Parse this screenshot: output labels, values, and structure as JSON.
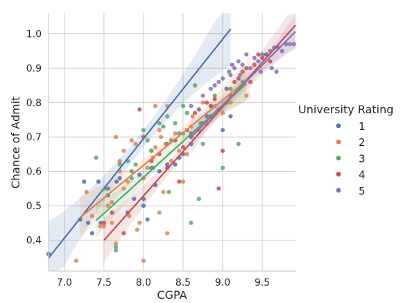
{
  "chart_data": {
    "type": "scatter",
    "title": "",
    "xlabel": "CGPA",
    "ylabel": "Chance of Admit",
    "xlim": [
      6.8,
      9.92
    ],
    "ylim": [
      0.31,
      1.06
    ],
    "xticks": [
      7.0,
      7.5,
      8.0,
      8.5,
      9.0,
      9.5
    ],
    "xtick_labels": [
      "7.0",
      "7.5",
      "8.0",
      "8.5",
      "9.0",
      "9.5"
    ],
    "yticks": [
      0.4,
      0.5,
      0.6,
      0.7,
      0.8,
      0.9,
      1.0
    ],
    "ytick_labels": [
      "0.4",
      "0.5",
      "0.6",
      "0.7",
      "0.8",
      "0.9",
      "1.0"
    ],
    "grid": true,
    "legend_position": "right",
    "legend": {
      "title": "University Rating",
      "entries": [
        "1",
        "2",
        "3",
        "4",
        "5"
      ]
    },
    "series": [
      {
        "name": "1",
        "color": "#4c72b0",
        "fit": {
          "intercept": -1.62,
          "slope": 0.2894,
          "x_range": [
            6.8,
            9.1
          ],
          "ci": 0.025
        },
        "points": [
          [
            6.8,
            0.36
          ],
          [
            7.2,
            0.46
          ],
          [
            7.25,
            0.57
          ],
          [
            7.3,
            0.45
          ],
          [
            7.35,
            0.42
          ],
          [
            7.43,
            0.57
          ],
          [
            7.46,
            0.45
          ],
          [
            7.55,
            0.53
          ],
          [
            7.66,
            0.57
          ],
          [
            7.7,
            0.58
          ],
          [
            7.8,
            0.48
          ],
          [
            7.88,
            0.52
          ],
          [
            7.95,
            0.59
          ],
          [
            8.0,
            0.5
          ],
          [
            8.0,
            0.52
          ],
          [
            8.05,
            0.46
          ],
          [
            8.1,
            0.61
          ],
          [
            8.15,
            0.56
          ],
          [
            8.2,
            0.6
          ],
          [
            8.3,
            0.62
          ],
          [
            8.45,
            0.64
          ],
          [
            8.5,
            0.65
          ],
          [
            8.6,
            0.68
          ],
          [
            8.6,
            0.7
          ],
          [
            8.7,
            0.72
          ],
          [
            8.85,
            0.76
          ],
          [
            9.0,
            0.72
          ],
          [
            9.1,
            0.76
          ],
          [
            8.4,
            0.62
          ],
          [
            7.55,
            0.55
          ]
        ]
      },
      {
        "name": "2",
        "color": "#dd8452",
        "fit": {
          "intercept": -0.9,
          "slope": 0.1897,
          "x_range": [
            7.2,
            9.35
          ],
          "ci": 0.015
        },
        "points": [
          [
            7.15,
            0.34
          ],
          [
            7.28,
            0.54
          ],
          [
            7.35,
            0.47
          ],
          [
            7.45,
            0.44
          ],
          [
            7.5,
            0.44
          ],
          [
            7.55,
            0.5
          ],
          [
            7.6,
            0.51
          ],
          [
            7.65,
            0.39
          ],
          [
            7.65,
            0.7
          ],
          [
            7.7,
            0.6
          ],
          [
            7.7,
            0.63
          ],
          [
            7.75,
            0.55
          ],
          [
            7.8,
            0.57
          ],
          [
            7.82,
            0.47
          ],
          [
            7.85,
            0.69
          ],
          [
            7.9,
            0.68
          ],
          [
            7.92,
            0.43
          ],
          [
            7.95,
            0.45
          ],
          [
            8.0,
            0.34
          ],
          [
            8.0,
            0.58
          ],
          [
            8.05,
            0.61
          ],
          [
            8.1,
            0.66
          ],
          [
            8.12,
            0.64
          ],
          [
            8.15,
            0.67
          ],
          [
            8.2,
            0.72
          ],
          [
            8.22,
            0.7
          ],
          [
            8.25,
            0.54
          ],
          [
            8.28,
            0.68
          ],
          [
            8.3,
            0.79
          ],
          [
            8.3,
            0.42
          ],
          [
            8.35,
            0.63
          ],
          [
            8.4,
            0.71
          ],
          [
            8.45,
            0.66
          ],
          [
            8.5,
            0.57
          ],
          [
            8.55,
            0.65
          ],
          [
            8.6,
            0.73
          ],
          [
            8.62,
            0.76
          ],
          [
            8.7,
            0.72
          ],
          [
            8.75,
            0.8
          ],
          [
            8.8,
            0.74
          ],
          [
            8.9,
            0.79
          ],
          [
            9.0,
            0.77
          ],
          [
            9.1,
            0.8
          ],
          [
            9.3,
            0.82
          ],
          [
            8.2,
            0.48
          ],
          [
            7.75,
            0.66
          ],
          [
            8.15,
            0.79
          ],
          [
            7.6,
            0.45
          ]
        ]
      },
      {
        "name": "3",
        "color": "#55a868",
        "fit": {
          "intercept": -1.095,
          "slope": 0.2097,
          "x_range": [
            7.4,
            9.3
          ],
          "ci": 0.012
        },
        "points": [
          [
            7.4,
            0.64
          ],
          [
            7.52,
            0.55
          ],
          [
            7.65,
            0.37
          ],
          [
            7.65,
            0.38
          ],
          [
            7.7,
            0.62
          ],
          [
            7.8,
            0.63
          ],
          [
            7.85,
            0.6
          ],
          [
            7.9,
            0.62
          ],
          [
            8.0,
            0.72
          ],
          [
            8.05,
            0.69
          ],
          [
            8.1,
            0.66
          ],
          [
            8.12,
            0.61
          ],
          [
            8.2,
            0.74
          ],
          [
            8.25,
            0.73
          ],
          [
            8.3,
            0.68
          ],
          [
            8.32,
            0.54
          ],
          [
            8.35,
            0.69
          ],
          [
            8.4,
            0.74
          ],
          [
            8.45,
            0.71
          ],
          [
            8.5,
            0.79
          ],
          [
            8.55,
            0.77
          ],
          [
            8.6,
            0.45
          ],
          [
            8.65,
            0.85
          ],
          [
            8.7,
            0.52
          ],
          [
            8.72,
            0.74
          ],
          [
            8.75,
            0.68
          ],
          [
            8.8,
            0.76
          ],
          [
            8.85,
            0.79
          ],
          [
            8.9,
            0.82
          ],
          [
            8.95,
            0.78
          ],
          [
            9.0,
            0.61
          ],
          [
            9.05,
            0.8
          ],
          [
            9.1,
            0.84
          ],
          [
            9.2,
            0.68
          ],
          [
            9.25,
            0.86
          ],
          [
            8.3,
            0.76
          ],
          [
            7.85,
            0.58
          ],
          [
            8.5,
            0.71
          ]
        ]
      },
      {
        "name": "4",
        "color": "#c44e52",
        "fit": {
          "intercept": -1.54,
          "slope": 0.2586,
          "x_range": [
            7.5,
            9.92
          ],
          "ci": 0.015
        },
        "points": [
          [
            7.5,
            0.45
          ],
          [
            7.6,
            0.48
          ],
          [
            7.75,
            0.42
          ],
          [
            7.95,
            0.78
          ],
          [
            8.0,
            0.7
          ],
          [
            8.1,
            0.63
          ],
          [
            8.2,
            0.65
          ],
          [
            8.3,
            0.61
          ],
          [
            8.4,
            0.69
          ],
          [
            8.45,
            0.57
          ],
          [
            8.5,
            0.67
          ],
          [
            8.55,
            0.72
          ],
          [
            8.6,
            0.71
          ],
          [
            8.65,
            0.77
          ],
          [
            8.7,
            0.78
          ],
          [
            8.75,
            0.74
          ],
          [
            8.8,
            0.8
          ],
          [
            8.85,
            0.79
          ],
          [
            8.9,
            0.81
          ],
          [
            8.95,
            0.55
          ],
          [
            9.0,
            0.66
          ],
          [
            9.05,
            0.84
          ],
          [
            9.1,
            0.82
          ],
          [
            9.15,
            0.86
          ],
          [
            9.2,
            0.87
          ],
          [
            9.25,
            0.89
          ],
          [
            9.3,
            0.9
          ],
          [
            9.35,
            0.86
          ],
          [
            9.4,
            0.91
          ],
          [
            9.45,
            0.94
          ],
          [
            9.5,
            0.93
          ],
          [
            9.55,
            0.94
          ],
          [
            9.6,
            0.92
          ],
          [
            9.7,
            0.96
          ]
        ]
      },
      {
        "name": "5",
        "color": "#8172b3",
        "fit": {
          "intercept": -1.3,
          "slope": 0.2325,
          "x_range": [
            8.6,
            9.92
          ],
          "ci": 0.012
        },
        "points": [
          [
            8.6,
            0.79
          ],
          [
            8.7,
            0.78
          ],
          [
            8.75,
            0.82
          ],
          [
            8.8,
            0.76
          ],
          [
            8.85,
            0.84
          ],
          [
            8.9,
            0.85
          ],
          [
            8.95,
            0.86
          ],
          [
            9.0,
            0.87
          ],
          [
            9.05,
            0.84
          ],
          [
            9.08,
            0.89
          ],
          [
            9.1,
            0.88
          ],
          [
            9.15,
            0.9
          ],
          [
            9.2,
            0.92
          ],
          [
            9.22,
            0.88
          ],
          [
            9.25,
            0.91
          ],
          [
            9.3,
            0.94
          ],
          [
            9.35,
            0.9
          ],
          [
            9.4,
            0.93
          ],
          [
            9.45,
            0.92
          ],
          [
            9.5,
            0.94
          ],
          [
            9.55,
            0.94
          ],
          [
            9.6,
            0.95
          ],
          [
            9.62,
            0.9
          ],
          [
            9.65,
            0.96
          ],
          [
            9.7,
            0.96
          ],
          [
            9.75,
            0.95
          ],
          [
            9.8,
            0.97
          ],
          [
            9.85,
            0.97
          ],
          [
            9.9,
            0.97
          ],
          [
            9.68,
            0.89
          ],
          [
            9.12,
            0.91
          ],
          [
            9.48,
            0.89
          ]
        ]
      }
    ]
  }
}
